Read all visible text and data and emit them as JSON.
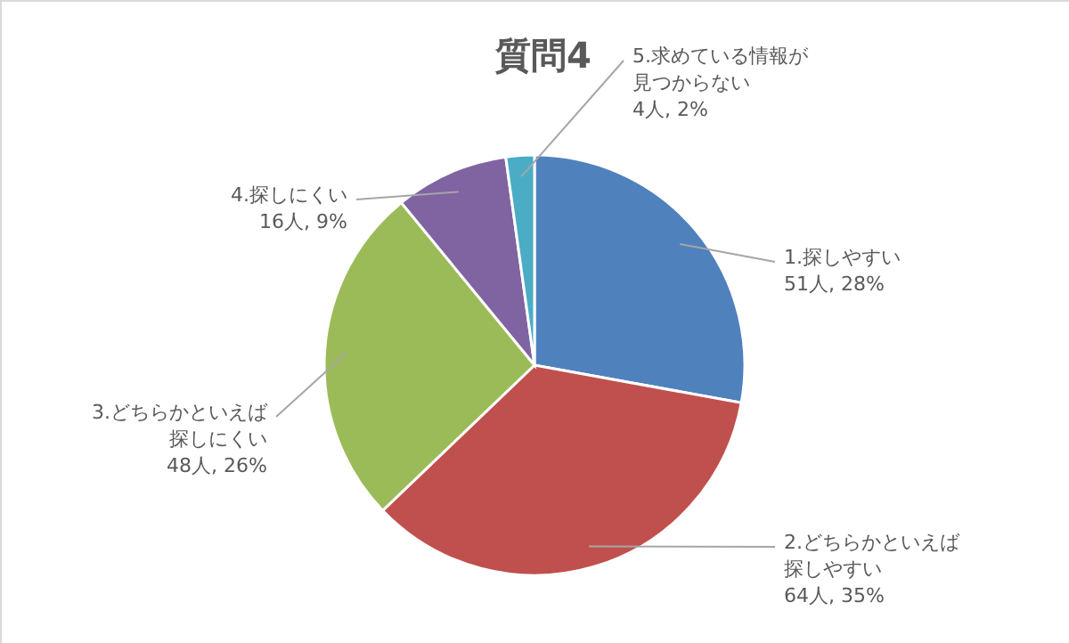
{
  "chart_data": {
    "type": "pie",
    "title": "質問4",
    "categories": [
      "1.探しやすい",
      "2.どちらかといえば探しやすい",
      "3.どちらかといえば探しにくい",
      "4.探しにくい",
      "5.求めている情報が見つからない"
    ],
    "values": [
      51,
      64,
      48,
      16,
      4
    ],
    "value_labels": [
      "51人, 28%",
      "64人, 35%",
      "48人, 26%",
      "16人, 9%",
      "4人, 2%"
    ],
    "colors": [
      "#4f81bd",
      "#c0504d",
      "#9bbb59",
      "#8064a2",
      "#4bacc6"
    ]
  }
}
